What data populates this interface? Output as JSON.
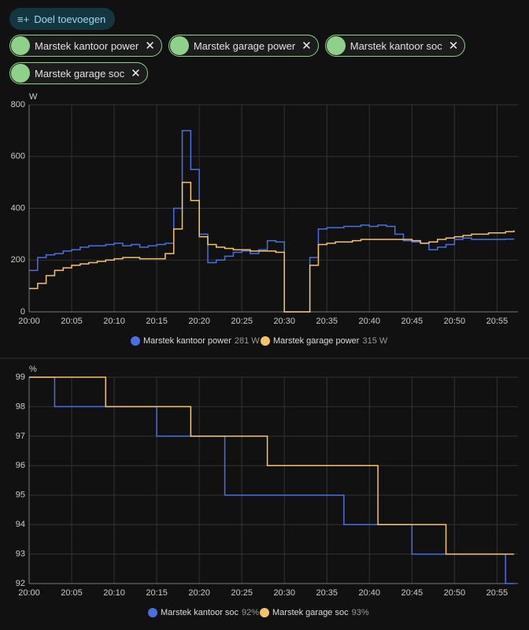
{
  "button": {
    "label": "Doel toevoegen"
  },
  "filters": [
    {
      "label": "Marstek kantoor power"
    },
    {
      "label": "Marstek garage power"
    },
    {
      "label": "Marstek kantoor soc"
    },
    {
      "label": "Marstek garage soc"
    }
  ],
  "chart_data": [
    {
      "type": "line",
      "step": true,
      "grid": true,
      "y_label": "W",
      "ylim": [
        0,
        800
      ],
      "yticks": [
        0,
        200,
        400,
        600,
        800
      ],
      "xlim": [
        "20:00",
        "20:57"
      ],
      "xticks": [
        "20:00",
        "20:05",
        "20:10",
        "20:15",
        "20:20",
        "20:25",
        "20:30",
        "20:35",
        "20:40",
        "20:45",
        "20:50",
        "20:55"
      ],
      "x": [
        "20:00",
        "20:01",
        "20:02",
        "20:03",
        "20:04",
        "20:05",
        "20:06",
        "20:07",
        "20:08",
        "20:09",
        "20:10",
        "20:11",
        "20:12",
        "20:13",
        "20:14",
        "20:15",
        "20:16",
        "20:17",
        "20:18",
        "20:19",
        "20:20",
        "20:21",
        "20:22",
        "20:23",
        "20:24",
        "20:25",
        "20:26",
        "20:27",
        "20:28",
        "20:29",
        "20:30",
        "20:31",
        "20:32",
        "20:33",
        "20:34",
        "20:35",
        "20:36",
        "20:37",
        "20:38",
        "20:39",
        "20:40",
        "20:41",
        "20:42",
        "20:43",
        "20:44",
        "20:45",
        "20:46",
        "20:47",
        "20:48",
        "20:49",
        "20:50",
        "20:51",
        "20:52",
        "20:53",
        "20:54",
        "20:55",
        "20:56",
        "20:57"
      ],
      "series": [
        {
          "name": "Marstek kantoor power",
          "state": "281 W",
          "color": "#4a6fe0",
          "values": [
            160,
            210,
            220,
            225,
            235,
            240,
            250,
            255,
            255,
            260,
            265,
            255,
            260,
            250,
            255,
            260,
            265,
            400,
            700,
            550,
            300,
            190,
            200,
            215,
            230,
            235,
            225,
            240,
            275,
            270,
            0,
            0,
            0,
            210,
            320,
            325,
            325,
            330,
            330,
            335,
            330,
            335,
            330,
            300,
            275,
            270,
            265,
            240,
            250,
            260,
            280,
            285,
            280,
            280,
            280,
            280,
            281,
            281
          ]
        },
        {
          "name": "Marstek garage power",
          "state": "315 W",
          "color": "#f5c46a",
          "values": [
            90,
            110,
            140,
            160,
            170,
            180,
            185,
            190,
            195,
            200,
            205,
            210,
            210,
            205,
            205,
            205,
            225,
            320,
            500,
            430,
            290,
            260,
            250,
            245,
            240,
            240,
            235,
            235,
            235,
            230,
            0,
            0,
            0,
            180,
            260,
            265,
            270,
            270,
            275,
            280,
            280,
            280,
            280,
            280,
            280,
            275,
            265,
            270,
            280,
            285,
            290,
            295,
            300,
            300,
            305,
            305,
            310,
            315
          ]
        }
      ]
    },
    {
      "type": "line",
      "step": true,
      "grid": true,
      "y_label": "%",
      "ylim": [
        92,
        99
      ],
      "yticks": [
        92,
        93,
        94,
        95,
        96,
        97,
        98,
        99
      ],
      "xlim": [
        "20:00",
        "20:57"
      ],
      "xticks": [
        "20:00",
        "20:05",
        "20:10",
        "20:15",
        "20:20",
        "20:25",
        "20:30",
        "20:35",
        "20:40",
        "20:45",
        "20:50",
        "20:55"
      ],
      "series": [
        {
          "name": "Marstek kantoor soc",
          "state": "92%",
          "color": "#4a6fe0",
          "x": [
            "20:00",
            "20:03",
            "20:15",
            "20:23",
            "20:37",
            "20:45",
            "20:56",
            "20:57"
          ],
          "values": [
            99,
            98,
            97,
            95,
            94,
            93,
            92,
            92
          ]
        },
        {
          "name": "Marstek garage soc",
          "state": "93%",
          "color": "#f5c46a",
          "x": [
            "20:00",
            "20:09",
            "20:19",
            "20:28",
            "20:41",
            "20:49",
            "20:57"
          ],
          "values": [
            99,
            98,
            97,
            96,
            94,
            93,
            93
          ]
        }
      ]
    }
  ]
}
